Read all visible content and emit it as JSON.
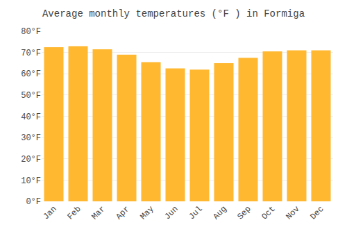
{
  "chart_data": {
    "type": "bar",
    "title": "Average monthly temperatures (°F ) in Formiga",
    "categories": [
      "Jan",
      "Feb",
      "Mar",
      "Apr",
      "May",
      "Jun",
      "Jul",
      "Aug",
      "Sep",
      "Oct",
      "Nov",
      "Dec"
    ],
    "values": [
      72.5,
      73.0,
      71.5,
      69.0,
      65.5,
      62.5,
      62.0,
      65.0,
      67.5,
      70.5,
      71.0,
      71.0
    ],
    "color": "#FFB830",
    "ylim": [
      0,
      80
    ],
    "yticks": [
      {
        "value": 0,
        "label": "0°F"
      },
      {
        "value": 10,
        "label": "10°F"
      },
      {
        "value": 20,
        "label": "20°F"
      },
      {
        "value": 30,
        "label": "30°F"
      },
      {
        "value": 40,
        "label": "40°F"
      },
      {
        "value": 50,
        "label": "50°F"
      },
      {
        "value": 60,
        "label": "60°F"
      },
      {
        "value": 70,
        "label": "70°F"
      },
      {
        "value": 80,
        "label": "80°F"
      }
    ],
    "grid": true
  }
}
